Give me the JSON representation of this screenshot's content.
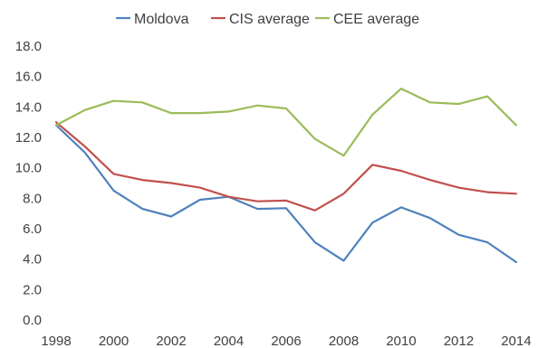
{
  "chart_data": {
    "type": "line",
    "title": "",
    "xlabel": "",
    "ylabel": "",
    "x": [
      1998,
      1999,
      2000,
      2001,
      2002,
      2003,
      2004,
      2005,
      2006,
      2007,
      2008,
      2009,
      2010,
      2011,
      2012,
      2013,
      2014
    ],
    "x_tick_labels": [
      "1998",
      "2000",
      "2002",
      "2004",
      "2006",
      "2008",
      "2010",
      "2012",
      "2014"
    ],
    "y_tick_labels": [
      "0.0",
      "2.0",
      "4.0",
      "6.0",
      "8.0",
      "10.0",
      "12.0",
      "14.0",
      "16.0",
      "18.0"
    ],
    "ylim": [
      0,
      18
    ],
    "grid": false,
    "legend_position": "top",
    "series": [
      {
        "name": "Moldova",
        "color": "#4F81BD",
        "values": [
          12.8,
          11.0,
          8.5,
          7.3,
          6.8,
          7.9,
          8.1,
          7.3,
          7.35,
          5.1,
          3.9,
          6.4,
          7.4,
          6.7,
          5.6,
          5.1,
          3.8
        ]
      },
      {
        "name": "CIS average",
        "color": "#C0504D",
        "values": [
          13.0,
          11.4,
          9.6,
          9.2,
          9.0,
          8.7,
          8.1,
          7.8,
          7.85,
          7.2,
          8.3,
          10.2,
          9.8,
          9.2,
          8.7,
          8.4,
          8.3
        ]
      },
      {
        "name": "CEE average",
        "color": "#9BBB59",
        "values": [
          12.8,
          13.8,
          14.4,
          14.3,
          13.6,
          13.6,
          13.7,
          14.1,
          13.9,
          11.9,
          10.8,
          13.5,
          15.2,
          14.3,
          14.2,
          14.7,
          12.8
        ]
      }
    ]
  }
}
